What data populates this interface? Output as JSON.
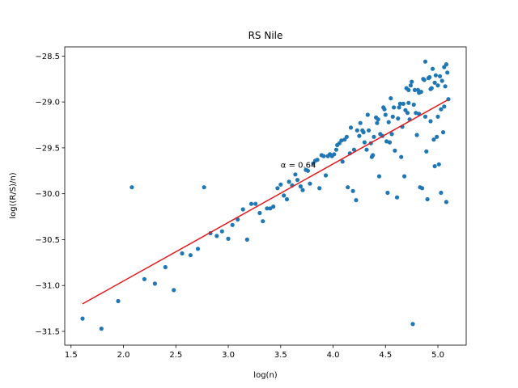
{
  "chart_data": {
    "type": "scatter",
    "title": "RS Nile",
    "xlabel": "log(n)",
    "ylabel": "log((R/S)/n)",
    "xlim": [
      1.44,
      5.27
    ],
    "ylim": [
      -31.65,
      -28.4
    ],
    "xticks": [
      1.5,
      2.0,
      2.5,
      3.0,
      3.5,
      4.0,
      4.5,
      5.0
    ],
    "xtick_labels": [
      "1.5",
      "2.0",
      "2.5",
      "3.0",
      "3.5",
      "4.0",
      "4.5",
      "5.0"
    ],
    "yticks": [
      -31.5,
      -31.0,
      -30.5,
      -30.0,
      -29.5,
      -29.0,
      -28.5
    ],
    "ytick_labels": [
      "−31.5",
      "−31.0",
      "−30.5",
      "−30.0",
      "−29.5",
      "−29.0",
      "−28.5"
    ],
    "grid": false,
    "annotation": "α = 0.64",
    "annotation_at": [
      3.5,
      -29.68
    ],
    "colors": {
      "points": "#1f77b4",
      "fit": "#e41a1c"
    },
    "fit_line": {
      "x": [
        1.61,
        5.09
      ],
      "y": [
        -31.2,
        -28.98
      ]
    },
    "series": [
      {
        "values": [
          [
            1.61,
            -31.36
          ],
          [
            1.79,
            -31.47
          ],
          [
            1.95,
            -31.17
          ],
          [
            2.08,
            -29.93
          ],
          [
            2.2,
            -30.93
          ],
          [
            2.3,
            -30.98
          ],
          [
            2.4,
            -30.8
          ],
          [
            2.48,
            -31.05
          ],
          [
            2.56,
            -30.65
          ],
          [
            2.64,
            -30.67
          ],
          [
            2.71,
            -30.6
          ],
          [
            2.77,
            -29.93
          ],
          [
            2.83,
            -30.43
          ],
          [
            2.89,
            -30.46
          ],
          [
            2.94,
            -30.41
          ],
          [
            3.0,
            -30.49
          ],
          [
            3.04,
            -30.34
          ],
          [
            3.09,
            -30.28
          ],
          [
            3.14,
            -30.17
          ],
          [
            3.18,
            -30.5
          ],
          [
            3.22,
            -30.11
          ],
          [
            3.26,
            -30.11
          ],
          [
            3.3,
            -30.21
          ],
          [
            3.33,
            -30.3
          ],
          [
            3.37,
            -30.16
          ],
          [
            3.4,
            -30.16
          ],
          [
            3.43,
            -30.14
          ],
          [
            3.47,
            -29.94
          ],
          [
            3.5,
            -29.9
          ],
          [
            3.53,
            -30.02
          ],
          [
            3.56,
            -30.06
          ],
          [
            3.58,
            -29.87
          ],
          [
            3.61,
            -29.91
          ],
          [
            3.64,
            -29.79
          ],
          [
            3.66,
            -29.85
          ],
          [
            3.69,
            -29.92
          ],
          [
            3.71,
            -29.96
          ],
          [
            3.74,
            -29.74
          ],
          [
            3.76,
            -29.75
          ],
          [
            3.78,
            -29.89
          ],
          [
            3.81,
            -29.67
          ],
          [
            3.83,
            -29.64
          ],
          [
            3.85,
            -29.63
          ],
          [
            3.87,
            -29.94
          ],
          [
            3.89,
            -29.58
          ],
          [
            3.91,
            -29.59
          ],
          [
            3.93,
            -29.8
          ],
          [
            3.95,
            -29.59
          ],
          [
            3.97,
            -29.57
          ],
          [
            3.99,
            -29.59
          ],
          [
            4.01,
            -29.57
          ],
          [
            4.03,
            -29.52
          ],
          [
            4.04,
            -29.47
          ],
          [
            4.06,
            -29.45
          ],
          [
            4.08,
            -29.42
          ],
          [
            4.09,
            -29.65
          ],
          [
            4.11,
            -29.41
          ],
          [
            4.13,
            -29.38
          ],
          [
            4.14,
            -29.93
          ],
          [
            4.16,
            -29.56
          ],
          [
            4.17,
            -29.28
          ],
          [
            4.19,
            -29.97
          ],
          [
            4.2,
            -29.52
          ],
          [
            4.22,
            -30.07
          ],
          [
            4.23,
            -29.31
          ],
          [
            4.25,
            -29.37
          ],
          [
            4.26,
            -29.23
          ],
          [
            4.28,
            -29.31
          ],
          [
            4.29,
            -29.33
          ],
          [
            4.3,
            -29.44
          ],
          [
            4.32,
            -29.52
          ],
          [
            4.33,
            -29.14
          ],
          [
            4.34,
            -29.31
          ],
          [
            4.36,
            -29.45
          ],
          [
            4.37,
            -29.6
          ],
          [
            4.38,
            -29.58
          ],
          [
            4.39,
            -29.38
          ],
          [
            4.41,
            -29.17
          ],
          [
            4.42,
            -29.23
          ],
          [
            4.43,
            -29.19
          ],
          [
            4.44,
            -29.81
          ],
          [
            4.45,
            -29.35
          ],
          [
            4.47,
            -29.37
          ],
          [
            4.48,
            -29.06
          ],
          [
            4.49,
            -29.08
          ],
          [
            4.5,
            -29.14
          ],
          [
            4.51,
            -29.43
          ],
          [
            4.52,
            -29.99
          ],
          [
            4.53,
            -29.22
          ],
          [
            4.54,
            -29.44
          ],
          [
            4.55,
            -28.96
          ],
          [
            4.56,
            -29.35
          ],
          [
            4.57,
            -29.16
          ],
          [
            4.58,
            -29.06
          ],
          [
            4.59,
            -29.53
          ],
          [
            4.61,
            -30.04
          ],
          [
            4.62,
            -29.18
          ],
          [
            4.63,
            -29.06
          ],
          [
            4.64,
            -29.02
          ],
          [
            4.65,
            -29.6
          ],
          [
            4.66,
            -29.27
          ],
          [
            4.67,
            -29.02
          ],
          [
            4.68,
            -29.81
          ],
          [
            4.69,
            -29.09
          ],
          [
            4.7,
            -28.85
          ],
          [
            4.71,
            -29.12
          ],
          [
            4.72,
            -28.87
          ],
          [
            4.72,
            -29.01
          ],
          [
            4.73,
            -29.19
          ],
          [
            4.74,
            -28.82
          ],
          [
            4.75,
            -28.78
          ],
          [
            4.76,
            -31.42
          ],
          [
            4.77,
            -29.03
          ],
          [
            4.78,
            -28.87
          ],
          [
            4.79,
            -29.12
          ],
          [
            4.8,
            -29.36
          ],
          [
            4.81,
            -28.87
          ],
          [
            4.82,
            -29.13
          ],
          [
            4.82,
            -28.9
          ],
          [
            4.83,
            -29.93
          ],
          [
            4.84,
            -28.89
          ],
          [
            4.85,
            -29.94
          ],
          [
            4.86,
            -28.75
          ],
          [
            4.87,
            -28.76
          ],
          [
            4.88,
            -29.16
          ],
          [
            4.88,
            -28.56
          ],
          [
            4.89,
            -29.54
          ],
          [
            4.9,
            -30.06
          ],
          [
            4.91,
            -28.74
          ],
          [
            4.92,
            -28.73
          ],
          [
            4.93,
            -29.21
          ],
          [
            4.93,
            -28.86
          ],
          [
            4.94,
            -28.85
          ],
          [
            4.95,
            -28.64
          ],
          [
            4.96,
            -29.41
          ],
          [
            4.97,
            -29.7
          ],
          [
            4.97,
            -28.79
          ],
          [
            4.98,
            -28.71
          ],
          [
            4.99,
            -29.38
          ],
          [
            5.0,
            -28.82
          ],
          [
            5.0,
            -29.16
          ],
          [
            5.01,
            -29.68
          ],
          [
            5.02,
            -28.72
          ],
          [
            5.03,
            -29.99
          ],
          [
            5.03,
            -29.08
          ],
          [
            5.04,
            -28.77
          ],
          [
            5.05,
            -29.33
          ],
          [
            5.06,
            -28.62
          ],
          [
            5.06,
            -29.05
          ],
          [
            5.07,
            -28.83
          ],
          [
            5.08,
            -28.59
          ],
          [
            5.08,
            -30.09
          ],
          [
            5.09,
            -28.68
          ],
          [
            5.1,
            -28.97
          ]
        ]
      }
    ]
  }
}
